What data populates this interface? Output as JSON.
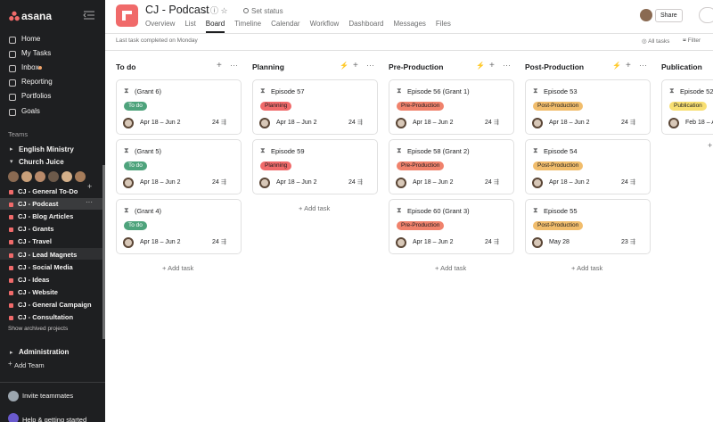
{
  "sidebar": {
    "logo": "asana",
    "nav": [
      "Home",
      "My Tasks",
      "Inbox",
      "Reporting",
      "Portfolios",
      "Goals"
    ],
    "teams_label": "Teams",
    "teams": [
      {
        "name": "English Ministry"
      },
      {
        "name": "Church Juice",
        "projects": [
          "CJ - General To-Do",
          "CJ - Podcast",
          "CJ - Blog Articles",
          "CJ - Grants",
          "CJ - Travel",
          "CJ - Lead Magnets",
          "CJ - Social Media",
          "CJ - Ideas",
          "CJ - Website",
          "CJ - General Campaign",
          "CJ - Consultation"
        ],
        "selected": 1
      }
    ],
    "show_archived": "Show archived projects",
    "administration": "Administration",
    "add_team": "Add Team",
    "invite": "Invite teammates",
    "help": "Help & getting started"
  },
  "header": {
    "title": "CJ - Podcast",
    "set_status": "Set status",
    "tabs": [
      "Overview",
      "List",
      "Board",
      "Timeline",
      "Calendar",
      "Workflow",
      "Dashboard",
      "Messages",
      "Files"
    ],
    "active_tab": 2,
    "share": "Share"
  },
  "toolbar": {
    "last_completed": "Last task completed on Monday",
    "all_tasks": "All tasks",
    "filter": "Filter"
  },
  "board": {
    "add_task": "Add task",
    "columns": [
      {
        "name": "To do",
        "cards": [
          {
            "title": "(Grant 6)",
            "tag": "To do",
            "dates": "Apr 18 – Jun 2",
            "subtasks": 24
          },
          {
            "title": "(Grant 5)",
            "tag": "To do",
            "dates": "Apr 18 – Jun 2",
            "subtasks": 24
          },
          {
            "title": "(Grant 4)",
            "tag": "To do",
            "dates": "Apr 18 – Jun 2",
            "subtasks": 24
          }
        ]
      },
      {
        "name": "Planning",
        "cards": [
          {
            "title": "Episode 57",
            "tag": "Planning",
            "dates": "Apr 18 – Jun 2",
            "subtasks": 24
          },
          {
            "title": "Episode 59",
            "tag": "Planning",
            "dates": "Apr 18 – Jun 2",
            "subtasks": 24
          }
        ]
      },
      {
        "name": "Pre-Production",
        "cards": [
          {
            "title": "Episode 56 (Grant 1)",
            "tag": "Pre-Production",
            "dates": "Apr 18 – Jun 2",
            "subtasks": 24
          },
          {
            "title": "Episode 58 (Grant 2)",
            "tag": "Pre-Production",
            "dates": "Apr 18 – Jun 2",
            "subtasks": 24
          },
          {
            "title": "Episode 60 (Grant 3)",
            "tag": "Pre-Production",
            "dates": "Apr 18 – Jun 2",
            "subtasks": 24
          }
        ]
      },
      {
        "name": "Post-Production",
        "cards": [
          {
            "title": "Episode 53",
            "tag": "Post-Production",
            "dates": "Apr 18 – Jun 2",
            "subtasks": 24
          },
          {
            "title": "Episode 54",
            "tag": "Post-Production",
            "dates": "Apr 18 – Jun 2",
            "subtasks": 24
          },
          {
            "title": "Episode 55",
            "tag": "Post-Production",
            "dates": "May 28",
            "subtasks": 23
          }
        ]
      },
      {
        "name": "Publication",
        "cards": [
          {
            "title": "Episode 52",
            "tag": "Publication",
            "dates": "Feb 18 – A"
          }
        ]
      }
    ]
  }
}
